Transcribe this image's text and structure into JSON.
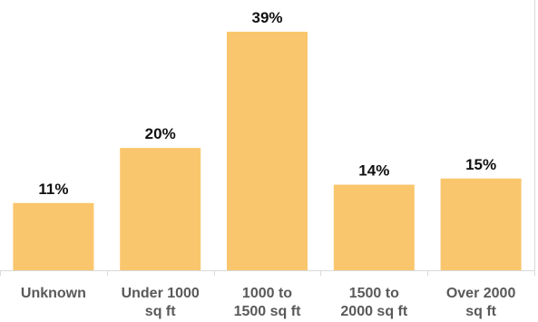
{
  "chart_data": {
    "type": "bar",
    "title": "",
    "xlabel": "",
    "ylabel": "",
    "categories": [
      [
        "Unknown"
      ],
      [
        "Under 1000",
        "sq ft"
      ],
      [
        "1000 to",
        "1500 sq ft"
      ],
      [
        "1500 to",
        "2000 sq ft"
      ],
      [
        "Over 2000",
        "sq ft"
      ]
    ],
    "values": [
      11,
      20,
      39,
      14,
      15
    ],
    "value_labels": [
      "11%",
      "20%",
      "39%",
      "14%",
      "15%"
    ],
    "unit": "%",
    "ylim": [
      0,
      40
    ],
    "grid": false,
    "legend": "none",
    "colors": {
      "bar": "#FAC66D",
      "axis": "#d9d9d9",
      "value_text": "#111111",
      "category_text": "#595959"
    }
  }
}
